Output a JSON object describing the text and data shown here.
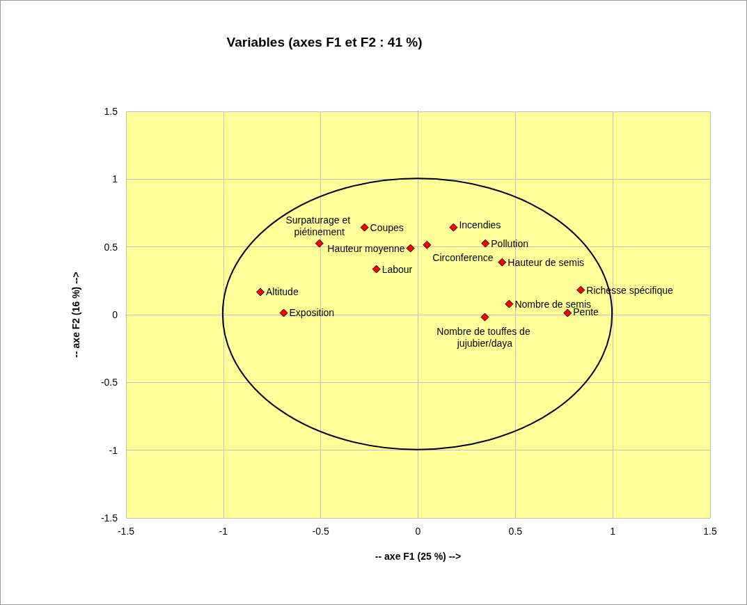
{
  "chart_data": {
    "type": "scatter",
    "title": "Variables (axes F1 et F2 : 41 %)",
    "xlabel": "-- axe F1 (25 %) -->",
    "ylabel": "-- axe F2 (16 %) -->",
    "x": [
      -0.81,
      -0.69,
      -0.507,
      -0.275,
      -0.214,
      -0.039,
      0.046,
      0.182,
      0.346,
      0.432,
      0.468,
      0.343,
      0.768,
      0.836
    ],
    "series": [
      {
        "color": "#ff0000",
        "values": [
          0.167,
          0.013,
          0.526,
          0.644,
          0.336,
          0.49,
          0.515,
          0.644,
          0.526,
          0.387,
          0.079,
          -0.018,
          0.013,
          0.182
        ]
      }
    ],
    "annotations": [
      {
        "text": "Altitude",
        "x": -0.81,
        "y": 0.167
      },
      {
        "text": "Exposition",
        "x": -0.69,
        "y": 0.013
      },
      {
        "text": "Surpaturage et piétinement",
        "x": -0.507,
        "y": 0.526
      },
      {
        "text": "Coupes",
        "x": -0.275,
        "y": 0.644
      },
      {
        "text": "Labour",
        "x": -0.214,
        "y": 0.336
      },
      {
        "text": "Hauteur moyenne",
        "x": -0.039,
        "y": 0.49
      },
      {
        "text": "Circonference",
        "x": 0.046,
        "y": 0.515
      },
      {
        "text": "Incendies",
        "x": 0.182,
        "y": 0.644
      },
      {
        "text": "Pollution",
        "x": 0.346,
        "y": 0.526
      },
      {
        "text": "Hauteur de semis",
        "x": 0.432,
        "y": 0.387
      },
      {
        "text": "Nombre de semis",
        "x": 0.468,
        "y": 0.079
      },
      {
        "text": "Nombre de touffes de jujubier/daya",
        "x": 0.343,
        "y": -0.018
      },
      {
        "text": "Pente",
        "x": 0.768,
        "y": 0.013
      },
      {
        "text": "Richesse spécifique",
        "x": 0.836,
        "y": 0.182
      }
    ],
    "xlim": [
      -1.5,
      1.5
    ],
    "xticks": [
      -1.5,
      -1,
      -0.5,
      0,
      0.5,
      1,
      1.5
    ],
    "ylim": [
      -1.5,
      1.5
    ],
    "yticks": [
      -1.5,
      -1,
      -0.5,
      0,
      0.5,
      1,
      1.5
    ],
    "grid": true,
    "marker": "diamond"
  }
}
